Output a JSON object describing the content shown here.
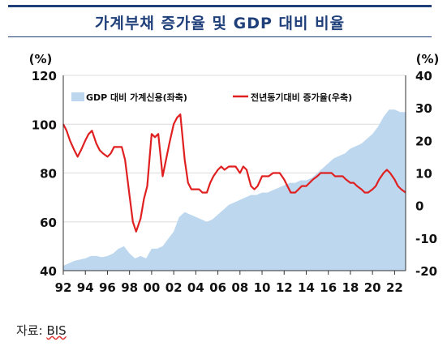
{
  "title": "가계부채 증가율 및 GDP 대비 비율",
  "source": {
    "label": "자료:",
    "value": "BIS"
  },
  "chart_data": {
    "type": "area",
    "left_unit": "(%)",
    "right_unit": "(%)",
    "x_ticks": [
      "92",
      "94",
      "96",
      "98",
      "00",
      "02",
      "04",
      "06",
      "08",
      "10",
      "12",
      "14",
      "16",
      "18",
      "20",
      "22"
    ],
    "x_range": [
      1992.0,
      2023.0
    ],
    "left_ylim": [
      40,
      120
    ],
    "left_ticks": [
      40,
      60,
      80,
      100,
      120
    ],
    "right_ylim": [
      -20,
      40
    ],
    "right_ticks": [
      -20,
      -10,
      0,
      10,
      20,
      30,
      40
    ],
    "grid": "horizontal",
    "legend_position": "top",
    "series": [
      {
        "name": "GDP 대비 가계신용(좌축)",
        "kind": "area",
        "axis": "left",
        "color": "#bdd7ee",
        "x": [
          1992.0,
          1992.5,
          1993.0,
          1993.5,
          1994.0,
          1994.5,
          1995.0,
          1995.5,
          1996.0,
          1996.5,
          1997.0,
          1997.5,
          1998.0,
          1998.5,
          1999.0,
          1999.5,
          2000.0,
          2000.5,
          2001.0,
          2001.5,
          2002.0,
          2002.5,
          2003.0,
          2003.5,
          2004.0,
          2004.5,
          2005.0,
          2005.5,
          2006.0,
          2006.5,
          2007.0,
          2007.5,
          2008.0,
          2008.5,
          2009.0,
          2009.5,
          2010.0,
          2010.5,
          2011.0,
          2011.5,
          2012.0,
          2012.5,
          2013.0,
          2013.5,
          2014.0,
          2014.5,
          2015.0,
          2015.5,
          2016.0,
          2016.5,
          2017.0,
          2017.5,
          2018.0,
          2018.5,
          2019.0,
          2019.5,
          2020.0,
          2020.5,
          2021.0,
          2021.5,
          2022.0,
          2022.5,
          2023.0
        ],
        "values": [
          42,
          43,
          44,
          44.5,
          45,
          46,
          46,
          45.5,
          46,
          47,
          49,
          50,
          47,
          45,
          46,
          45,
          49,
          49,
          50,
          53,
          56,
          62,
          64,
          63,
          62,
          61,
          60,
          61,
          63,
          65,
          67,
          68,
          69,
          70,
          71,
          71,
          72,
          72,
          73,
          74,
          75,
          76,
          76,
          77,
          77,
          78,
          80,
          82,
          84,
          86,
          87,
          88,
          90,
          91,
          92,
          94,
          96,
          99,
          103,
          106,
          106,
          105,
          105
        ]
      },
      {
        "name": "전년동기대비 증가율(우축)",
        "kind": "line",
        "axis": "right",
        "color": "#e02020",
        "x": [
          1992.0,
          1992.3,
          1992.6,
          1993.0,
          1993.3,
          1993.6,
          1994.0,
          1994.3,
          1994.6,
          1995.0,
          1995.3,
          1995.6,
          1996.0,
          1996.3,
          1996.6,
          1997.0,
          1997.3,
          1997.6,
          1998.0,
          1998.3,
          1998.6,
          1999.0,
          1999.3,
          1999.6,
          2000.0,
          2000.3,
          2000.6,
          2001.0,
          2001.3,
          2001.6,
          2002.0,
          2002.3,
          2002.6,
          2003.0,
          2003.3,
          2003.6,
          2004.0,
          2004.3,
          2004.6,
          2005.0,
          2005.3,
          2005.6,
          2006.0,
          2006.3,
          2006.6,
          2007.0,
          2007.3,
          2007.6,
          2008.0,
          2008.3,
          2008.6,
          2009.0,
          2009.3,
          2009.6,
          2010.0,
          2010.3,
          2010.6,
          2011.0,
          2011.3,
          2011.6,
          2012.0,
          2012.3,
          2012.6,
          2013.0,
          2013.3,
          2013.6,
          2014.0,
          2014.3,
          2014.6,
          2015.0,
          2015.3,
          2015.6,
          2016.0,
          2016.3,
          2016.6,
          2017.0,
          2017.3,
          2017.6,
          2018.0,
          2018.3,
          2018.6,
          2019.0,
          2019.3,
          2019.6,
          2020.0,
          2020.3,
          2020.6,
          2021.0,
          2021.3,
          2021.6,
          2022.0,
          2022.3,
          2022.6,
          2023.0
        ],
        "values": [
          25,
          23,
          20,
          17,
          15,
          17,
          20,
          22,
          23,
          19,
          17,
          16,
          15,
          16,
          18,
          18,
          18,
          14,
          3,
          -5,
          -8,
          -4,
          2,
          6,
          22,
          21,
          22,
          9,
          14,
          19,
          25,
          27,
          28,
          14,
          7,
          5,
          5,
          5,
          4,
          4,
          7,
          9,
          11,
          12,
          11,
          12,
          12,
          12,
          10,
          12,
          11,
          6,
          5,
          6,
          9,
          9,
          9,
          10,
          10,
          10,
          8,
          6,
          4,
          4,
          5,
          6,
          6,
          7,
          8,
          9,
          10,
          10,
          10,
          10,
          9,
          9,
          9,
          8,
          7,
          7,
          6,
          5,
          4,
          4,
          5,
          6,
          8,
          10,
          11,
          10,
          8,
          6,
          5,
          4
        ]
      }
    ]
  }
}
